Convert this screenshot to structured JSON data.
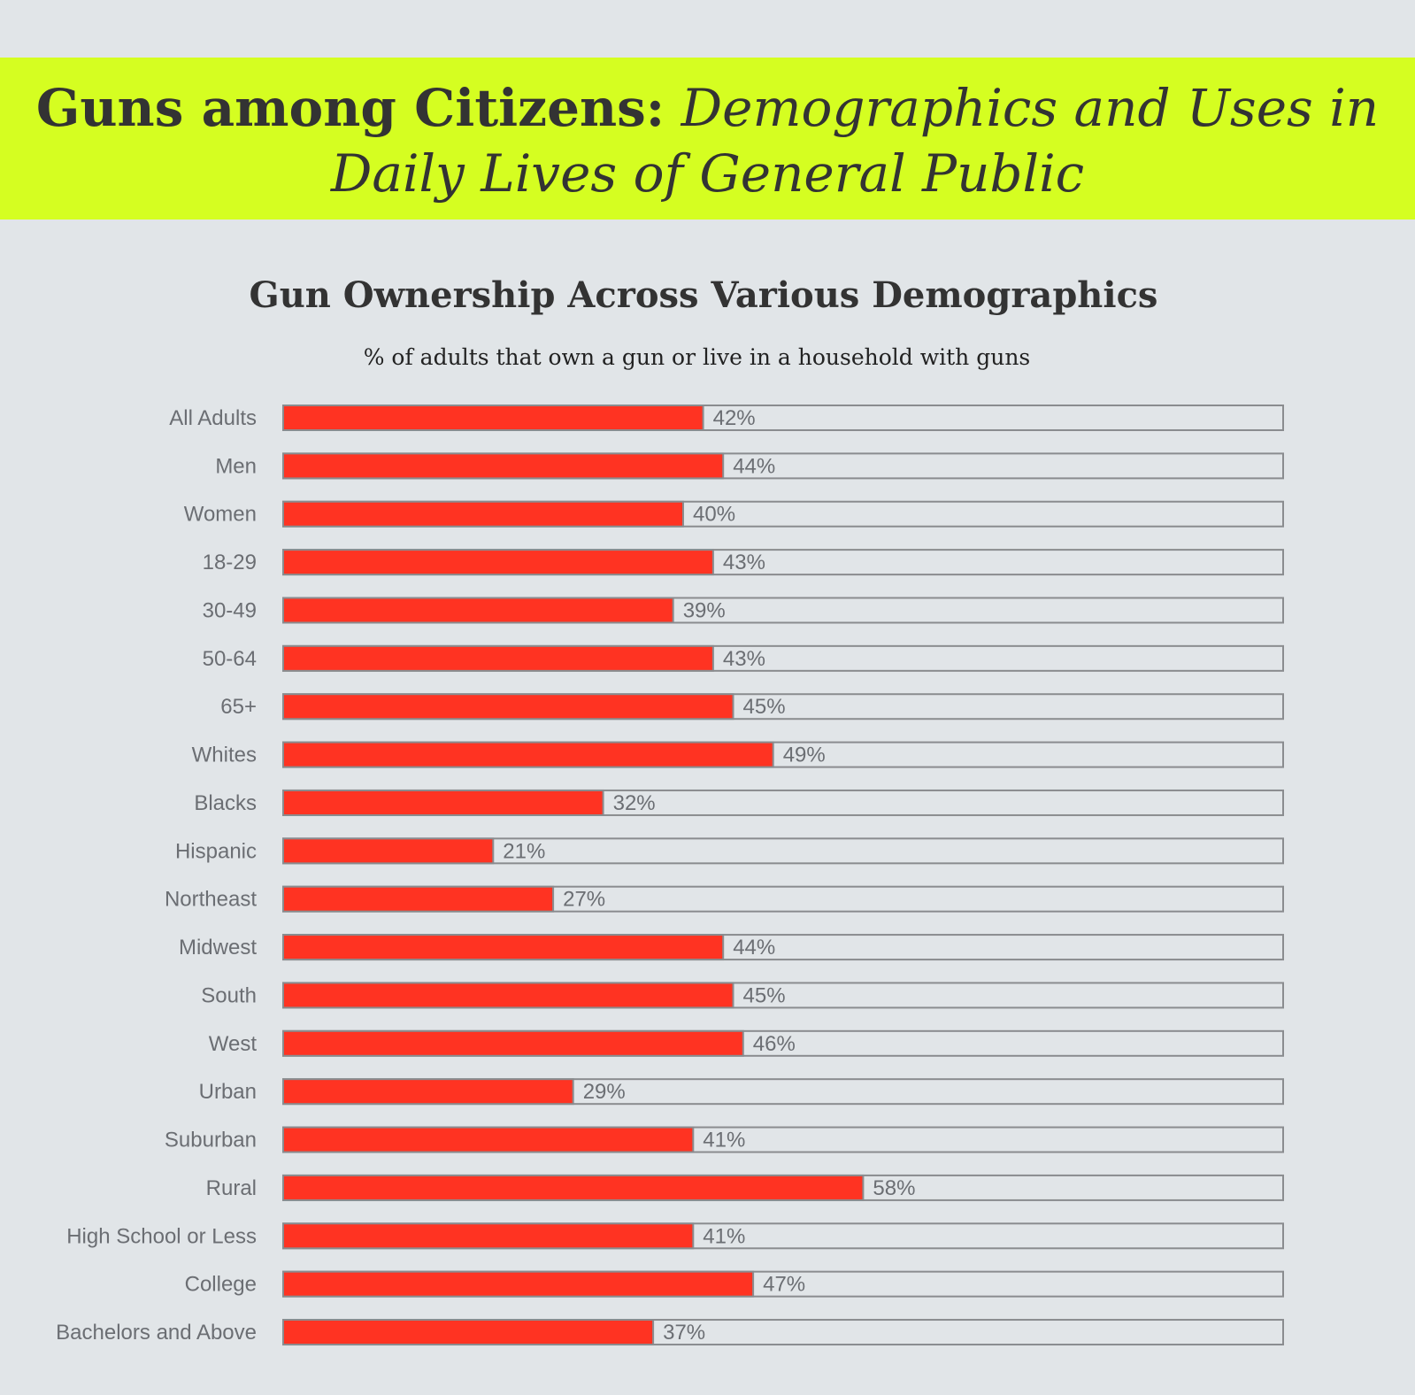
{
  "banner": {
    "title_bold": "Guns among Citizens:",
    "title_italic": "Demographics and Uses in Daily Lives of General Public"
  },
  "colors": {
    "banner_background": "#d5fe21",
    "page_background": "#e1e5e8",
    "bar_fill": "#ff3322",
    "track_outline": "#8a8c8f"
  },
  "chart_data": {
    "type": "bar",
    "orientation": "horizontal",
    "title": "Gun Ownership Across Various Demographics",
    "subtitle": "% of adults that own a gun or live in a household with guns",
    "categories": [
      "All Adults",
      "Men",
      "Women",
      "18-29",
      "30-49",
      "50-64",
      "65+",
      "Whites",
      "Blacks",
      "Hispanic",
      "Northeast",
      "Midwest",
      "South",
      "West",
      "Urban",
      "Suburban",
      "Rural",
      "High School or Less",
      "College",
      "Bachelors and Above"
    ],
    "values": [
      42,
      44,
      40,
      43,
      39,
      43,
      45,
      49,
      32,
      21,
      27,
      44,
      45,
      46,
      29,
      41,
      58,
      41,
      47,
      37
    ],
    "value_labels": [
      "42%",
      "44%",
      "40%",
      "43%",
      "39%",
      "43%",
      "45%",
      "49%",
      "32%",
      "21%",
      "27%",
      "44%",
      "45%",
      "46%",
      "29%",
      "41%",
      "58%",
      "41%",
      "47%",
      "37%"
    ],
    "xlim": [
      0,
      100
    ],
    "grid": false
  }
}
